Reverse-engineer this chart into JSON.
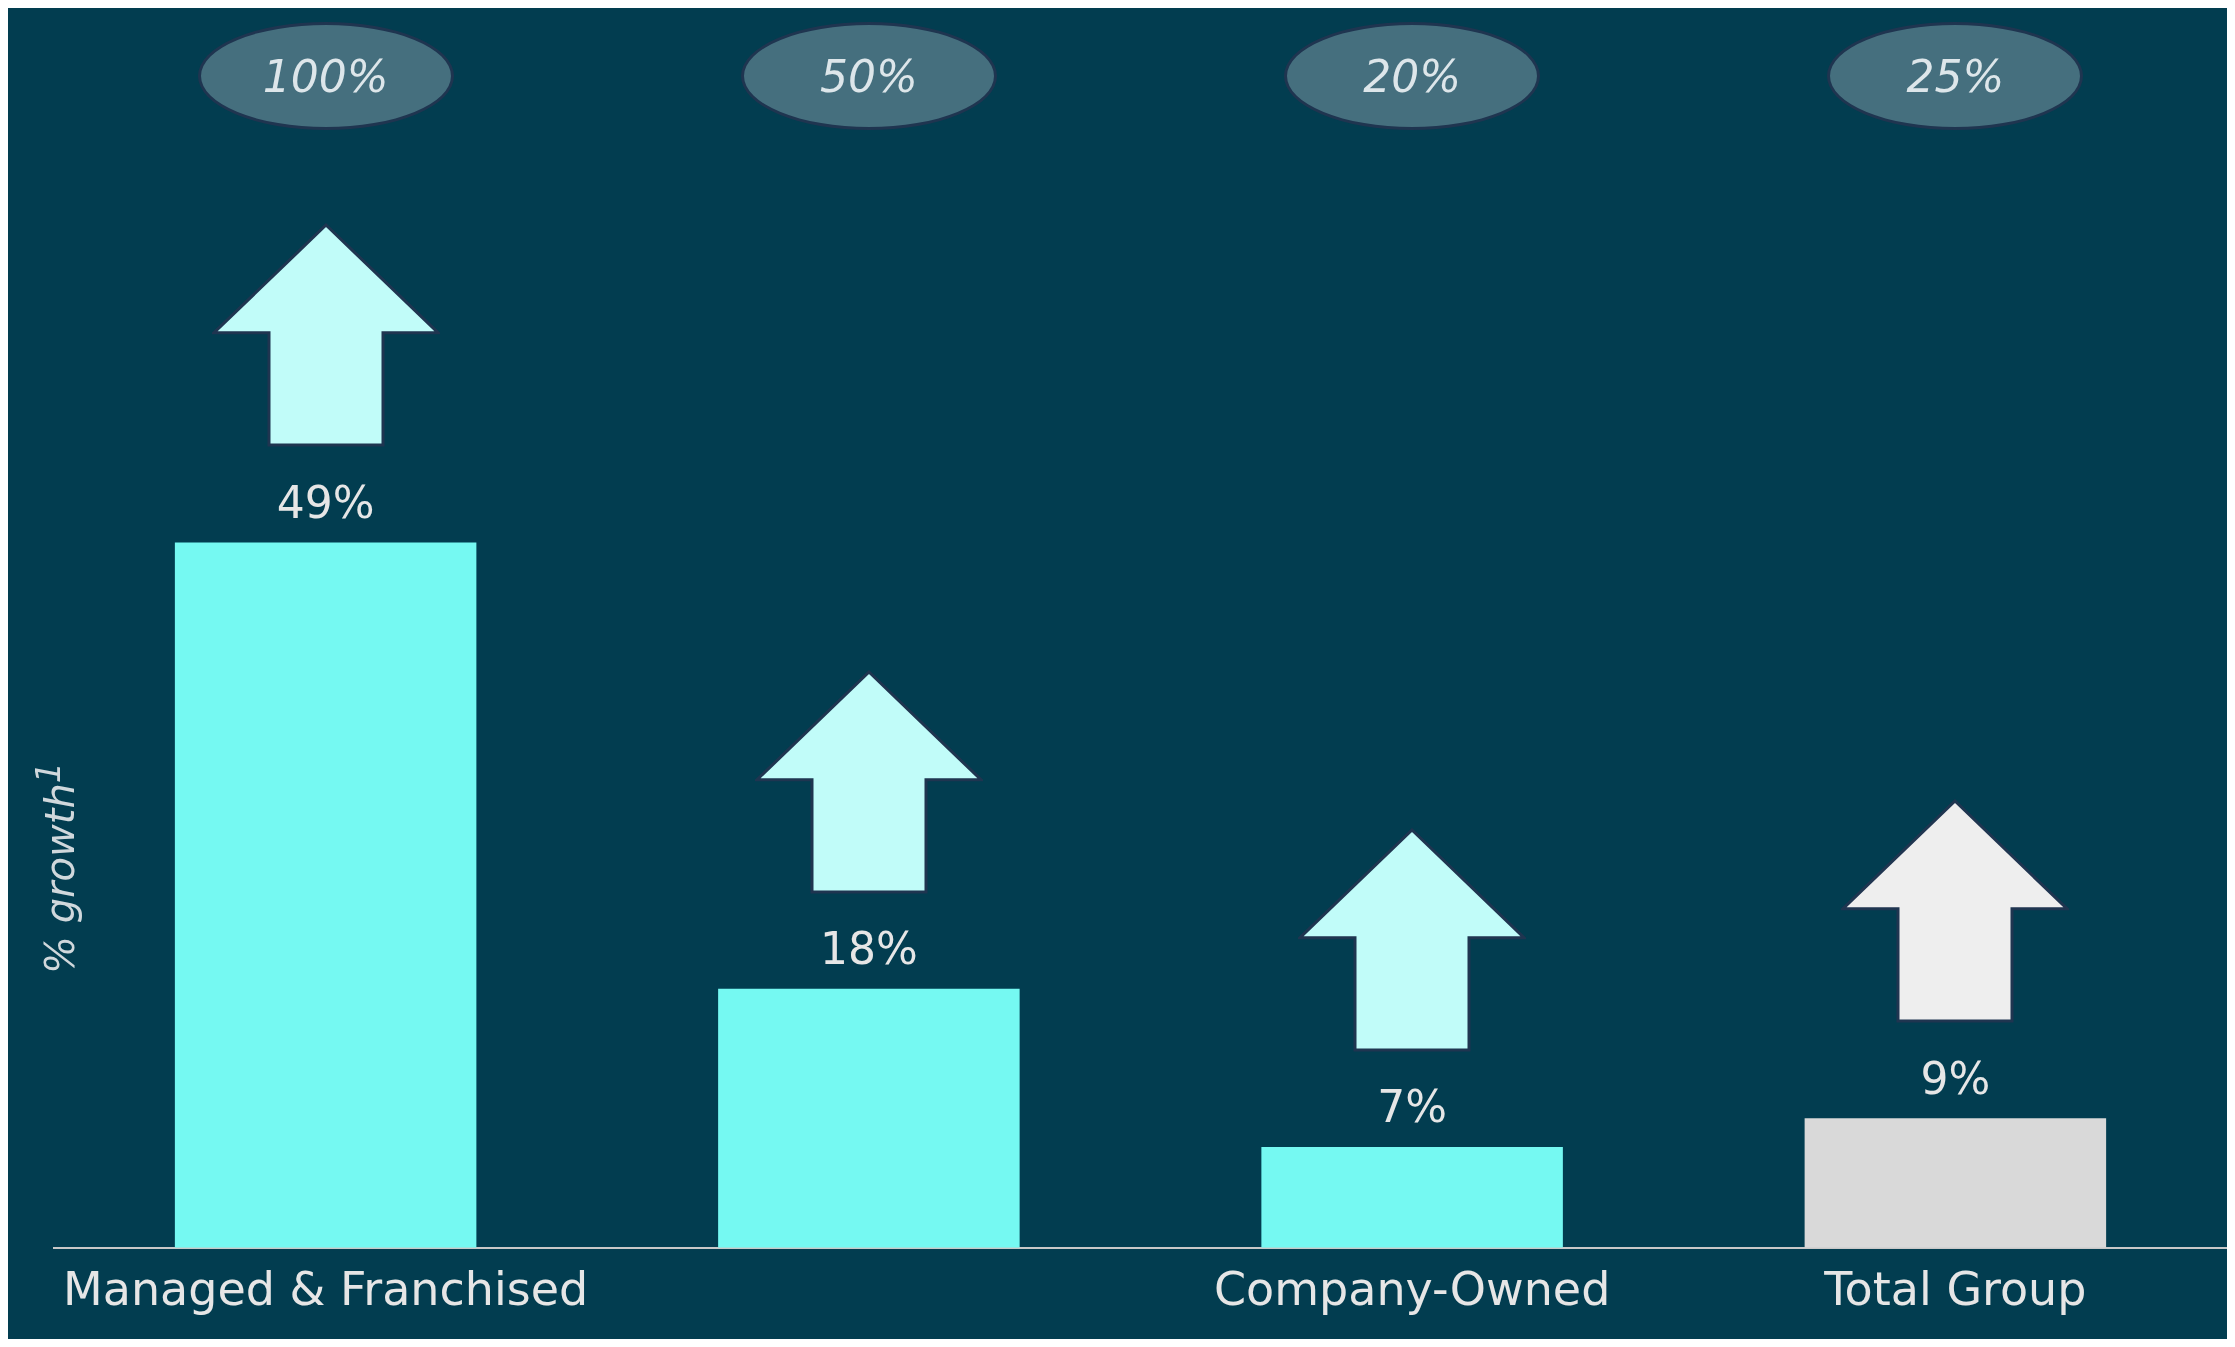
{
  "chart_data": {
    "type": "bar",
    "ylabel": "% growth$^{1}$",
    "categories": [
      "Managed & Franchised",
      null,
      "Company-Owned",
      "Total Group"
    ],
    "values": [
      49,
      18,
      7,
      9
    ],
    "colors": [
      "#75f9f2",
      "#75f9f2",
      "#75f9f2",
      "#d9d9d9"
    ],
    "value_labels": [
      "49%",
      "18%",
      "7%",
      "9%"
    ],
    "annotations": [
      "100%",
      "50%",
      "20%",
      "25%"
    ],
    "grid": false,
    "legend": false
  }
}
